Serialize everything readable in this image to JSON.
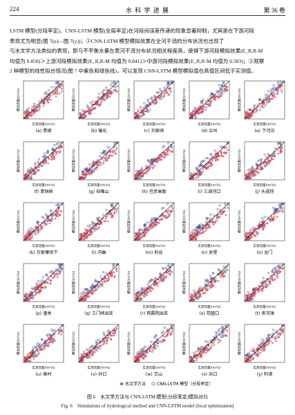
{
  "header": {
    "page": "224",
    "journal": "水 科 学 进 展",
    "volume": "第 36 卷"
  },
  "body": [
    "LSTM 模型(分段率定)、CNN-LSTM 模型(全局率定)在河段间误差传递的现象显著抑制，尤其是在下游河段",
    "表现尤为明显(图 7(u)—图 7(y))；②CNN-LSTM 模型模拟效果在全河干流的分布状况也出现了",
    "与水文学方法类似的表现，即与不平衡水量在黄河干流分布状况相关程度高，使得下游河段模拟效果(E_R,R-M",
    "均值为 0.858)＞上游河段模拟效果(E_R,R-M 均值为 0.841)＞中游河段模拟效果(E_R,R-M 均值为 0.583)；③观察",
    "2 种模型的线性拟合情况(图 7 中紫色和绿色线)，可以发现 CNN-LSTM 模型模拟值在高值区间低于实测值。"
  ],
  "figure": {
    "x_label": "实测流量/(m³/s)",
    "y_label": "模拟流量/(m³/s)",
    "panels": [
      "(a) 贵德",
      "(b) 循化",
      "(c) 刘家峡",
      "(d) 兰州",
      "(e) 下河沿",
      "(f) 青铜峡",
      "(g) 石嘴山",
      "(h) 巴彦高勒",
      "(i) 三湖河口",
      "(j) 头道拐",
      "(k) 万家寨坝下",
      "(l) 河曲",
      "(m) 府谷",
      "(n) 吴堡",
      "(o) 龙门",
      "(p) 潼关",
      "(q) 三门峡出库",
      "(r) 西霞院出库",
      "(s) 花园口",
      "(t) 夹河滩",
      "(u) 高村",
      "(v) 孙口",
      "(w) 艾山",
      "(x) 泺口",
      "(y) 利津"
    ],
    "legend": [
      "水文学方法",
      "CNN-LSTM 模型（分段率定）"
    ],
    "caption_cn": "图 6　水文学方法与 CNN-LSTM 模型(分段率定)模拟对比",
    "caption_en": "Fig. 6　Simulations of hydrological method and CNN-LSTM model (local optimization)"
  }
}
